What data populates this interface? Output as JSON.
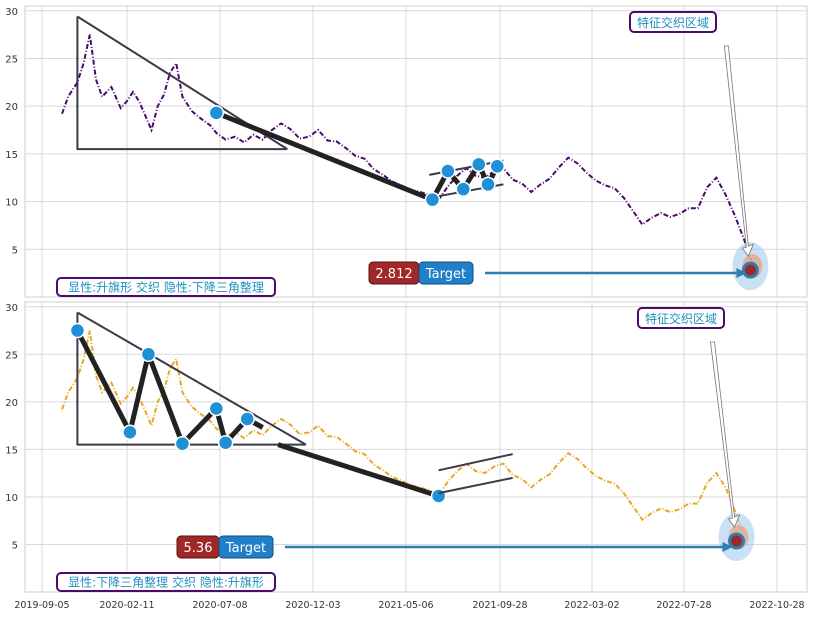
{
  "chart_data": [
    {
      "type": "line",
      "panel": "top",
      "ylim": [
        0,
        30.5
      ],
      "yticks": [
        5,
        10,
        15,
        20,
        25,
        30
      ],
      "series_color": "#4b0a6e",
      "series": [
        {
          "values": [
            [
              0,
              19.2
            ],
            [
              0.2,
              21
            ],
            [
              0.5,
              22.5
            ],
            [
              0.7,
              24.5
            ],
            [
              0.9,
              27.5
            ],
            [
              1.1,
              22.8
            ],
            [
              1.3,
              21
            ],
            [
              1.6,
              22
            ],
            [
              1.9,
              19.8
            ],
            [
              2.1,
              20.5
            ],
            [
              2.3,
              21.5
            ],
            [
              2.5,
              20.5
            ],
            [
              2.7,
              19
            ],
            [
              2.9,
              17.5
            ],
            [
              3.1,
              20
            ],
            [
              3.3,
              21.2
            ],
            [
              3.5,
              23.5
            ],
            [
              3.7,
              24.5
            ],
            [
              3.9,
              21
            ],
            [
              4.2,
              19.5
            ],
            [
              4.5,
              18.7
            ],
            [
              4.8,
              18
            ],
            [
              5.0,
              17.2
            ],
            [
              5.3,
              16.5
            ],
            [
              5.6,
              16.8
            ],
            [
              5.9,
              16.2
            ],
            [
              6.2,
              17
            ],
            [
              6.5,
              16.5
            ],
            [
              6.8,
              17.5
            ],
            [
              7.1,
              18.2
            ],
            [
              7.4,
              17.6
            ],
            [
              7.7,
              16.6
            ],
            [
              8.0,
              16.8
            ],
            [
              8.3,
              17.5
            ],
            [
              8.6,
              16.4
            ],
            [
              8.9,
              16.3
            ],
            [
              9.2,
              15.6
            ],
            [
              9.5,
              14.8
            ],
            [
              9.8,
              14.5
            ],
            [
              10.1,
              13.4
            ],
            [
              10.4,
              12.8
            ],
            [
              10.7,
              12.1
            ],
            [
              11.0,
              11.7
            ],
            [
              11.3,
              11.2
            ],
            [
              11.6,
              11.0
            ],
            [
              11.9,
              10.7
            ],
            [
              12.2,
              10.2
            ],
            [
              12.5,
              11.6
            ],
            [
              12.8,
              12.7
            ],
            [
              13.1,
              13.5
            ],
            [
              13.4,
              12.7
            ],
            [
              13.7,
              12.5
            ],
            [
              14.0,
              13.2
            ],
            [
              14.3,
              13.5
            ],
            [
              14.6,
              12.3
            ],
            [
              14.9,
              11.9
            ],
            [
              15.2,
              11.0
            ],
            [
              15.5,
              11.8
            ],
            [
              15.8,
              12.4
            ],
            [
              16.1,
              13.6
            ],
            [
              16.4,
              14.6
            ],
            [
              16.7,
              14.0
            ],
            [
              17.0,
              13.0
            ],
            [
              17.3,
              12.2
            ],
            [
              17.6,
              11.7
            ],
            [
              17.9,
              11.4
            ],
            [
              18.2,
              10.4
            ],
            [
              18.5,
              9.0
            ],
            [
              18.8,
              7.6
            ],
            [
              19.1,
              8.3
            ],
            [
              19.4,
              8.8
            ],
            [
              19.7,
              8.4
            ],
            [
              20.0,
              8.7
            ],
            [
              20.3,
              9.3
            ],
            [
              20.6,
              9.3
            ],
            [
              20.9,
              11.5
            ],
            [
              21.2,
              12.5
            ],
            [
              21.5,
              10.7
            ],
            [
              21.8,
              8.5
            ],
            [
              22.1,
              6.0
            ],
            [
              22.35,
              3.6
            ]
          ]
        }
      ],
      "patterns": [
        {
          "name": "descending-triangle",
          "lines": [
            [
              [
                0.5,
                29.4
              ],
              [
                0.5,
                15.5
              ],
              [
                7.3,
                15.5
              ]
            ],
            [
              [
                0.5,
                29.4
              ],
              [
                7.3,
                15.5
              ]
            ]
          ],
          "points": []
        },
        {
          "name": "trend",
          "lines": [
            [
              [
                5.0,
                19.3
              ],
              [
                12.0,
                10.2
              ]
            ]
          ],
          "points": [
            [
              5.0,
              19.3
            ]
          ]
        },
        {
          "name": "flag",
          "lines": [
            [
              [
                12.0,
                10.2
              ],
              [
                12.5,
                13.2
              ],
              [
                13.0,
                11.3
              ],
              [
                13.5,
                13.9
              ],
              [
                13.8,
                11.8
              ],
              [
                14.1,
                13.7
              ]
            ],
            [
              [
                11.9,
                12.8
              ],
              [
                14.3,
                14.3
              ]
            ],
            [
              [
                11.9,
                10.4
              ],
              [
                14.3,
                11.8
              ]
            ]
          ],
          "points": [
            [
              12.0,
              10.2
            ],
            [
              12.5,
              13.2
            ],
            [
              13.0,
              11.3
            ],
            [
              13.5,
              13.9
            ],
            [
              13.8,
              11.8
            ],
            [
              14.1,
              13.7
            ]
          ]
        }
      ],
      "target_label": "2.812",
      "target_text": "Target",
      "target_point": [
        22.3,
        2.812
      ],
      "zone_label": "特征交织区域",
      "footer_label": "显性:升旗形 交织 隐性:下降三角整理"
    },
    {
      "type": "line",
      "panel": "bottom",
      "ylim": [
        0,
        30.5
      ],
      "yticks": [
        5,
        10,
        15,
        20,
        25,
        30
      ],
      "series_color": "#e8a825",
      "series": [
        {
          "values": [
            [
              0,
              19.2
            ],
            [
              0.2,
              21
            ],
            [
              0.5,
              22.5
            ],
            [
              0.7,
              24.5
            ],
            [
              0.9,
              27.5
            ],
            [
              1.1,
              22.8
            ],
            [
              1.3,
              21
            ],
            [
              1.6,
              22
            ],
            [
              1.9,
              19.8
            ],
            [
              2.1,
              20.5
            ],
            [
              2.3,
              21.5
            ],
            [
              2.5,
              20.5
            ],
            [
              2.7,
              19
            ],
            [
              2.9,
              17.5
            ],
            [
              3.1,
              20
            ],
            [
              3.3,
              21.2
            ],
            [
              3.5,
              23.5
            ],
            [
              3.7,
              24.5
            ],
            [
              3.9,
              21
            ],
            [
              4.2,
              19.5
            ],
            [
              4.5,
              18.7
            ],
            [
              4.8,
              18
            ],
            [
              5.0,
              17.2
            ],
            [
              5.3,
              16.5
            ],
            [
              5.6,
              16.8
            ],
            [
              5.9,
              16.2
            ],
            [
              6.2,
              17
            ],
            [
              6.5,
              16.5
            ],
            [
              6.8,
              17.5
            ],
            [
              7.1,
              18.2
            ],
            [
              7.4,
              17.6
            ],
            [
              7.7,
              16.6
            ],
            [
              8.0,
              16.8
            ],
            [
              8.3,
              17.5
            ],
            [
              8.6,
              16.4
            ],
            [
              8.9,
              16.3
            ],
            [
              9.2,
              15.6
            ],
            [
              9.5,
              14.8
            ],
            [
              9.8,
              14.5
            ],
            [
              10.1,
              13.4
            ],
            [
              10.4,
              12.8
            ],
            [
              10.7,
              12.1
            ],
            [
              11.0,
              11.7
            ],
            [
              11.3,
              11.2
            ],
            [
              11.6,
              11.0
            ],
            [
              11.9,
              10.7
            ],
            [
              12.2,
              10.2
            ],
            [
              12.5,
              11.6
            ],
            [
              12.8,
              12.7
            ],
            [
              13.1,
              13.5
            ],
            [
              13.4,
              12.7
            ],
            [
              13.7,
              12.5
            ],
            [
              14.0,
              13.2
            ],
            [
              14.3,
              13.5
            ],
            [
              14.6,
              12.3
            ],
            [
              14.9,
              11.9
            ],
            [
              15.2,
              11.0
            ],
            [
              15.5,
              11.8
            ],
            [
              15.8,
              12.4
            ],
            [
              16.1,
              13.6
            ],
            [
              16.4,
              14.6
            ],
            [
              16.7,
              14.0
            ],
            [
              17.0,
              13.0
            ],
            [
              17.3,
              12.2
            ],
            [
              17.6,
              11.7
            ],
            [
              17.9,
              11.4
            ],
            [
              18.2,
              10.4
            ],
            [
              18.5,
              9.0
            ],
            [
              18.8,
              7.6
            ],
            [
              19.1,
              8.3
            ],
            [
              19.4,
              8.8
            ],
            [
              19.7,
              8.4
            ],
            [
              20.0,
              8.7
            ],
            [
              20.3,
              9.3
            ],
            [
              20.6,
              9.3
            ],
            [
              20.9,
              11.5
            ],
            [
              21.2,
              12.5
            ],
            [
              21.5,
              11.0
            ],
            [
              21.8,
              8.5
            ],
            [
              22.1,
              5.8
            ]
          ]
        }
      ],
      "patterns": [
        {
          "name": "descending-triangle",
          "lines": [
            [
              [
                0.5,
                29.4
              ],
              [
                0.5,
                15.5
              ],
              [
                7.9,
                15.5
              ]
            ],
            [
              [
                0.5,
                29.4
              ],
              [
                7.9,
                15.5
              ]
            ],
            [
              [
                0.5,
                27.5
              ],
              [
                2.2,
                16.8
              ],
              [
                2.8,
                25.0
              ],
              [
                3.9,
                15.6
              ],
              [
                5.0,
                19.3
              ],
              [
                5.3,
                15.7
              ],
              [
                6.0,
                18.2
              ],
              [
                6.5,
                17.3
              ]
            ],
            [
              [
                7.0,
                15.5
              ],
              [
                12.2,
                10.1
              ]
            ]
          ],
          "points": [
            [
              0.5,
              27.5
            ],
            [
              2.2,
              16.8
            ],
            [
              2.8,
              25.0
            ],
            [
              3.9,
              15.6
            ],
            [
              5.0,
              19.3
            ],
            [
              5.3,
              15.7
            ],
            [
              6.0,
              18.2
            ],
            [
              12.2,
              10.1
            ]
          ]
        },
        {
          "name": "flag",
          "lines": [
            [
              [
                12.2,
                12.8
              ],
              [
                14.6,
                14.5
              ]
            ],
            [
              [
                12.2,
                10.4
              ],
              [
                14.6,
                12.0
              ]
            ]
          ],
          "points": []
        }
      ],
      "target_label": "5.36",
      "target_text": "Target",
      "target_point": [
        21.85,
        5.36
      ],
      "zone_label": "特征交织区域",
      "footer_label": "显性:下降三角整理 交织 隐性:升旗形"
    }
  ],
  "x_ticks": [
    "2019-09-05",
    "2020-02-11",
    "2020-07-08",
    "2020-12-03",
    "2021-05-06",
    "2021-09-28",
    "2022-03-02",
    "2022-07-28",
    "2022-10-28"
  ],
  "colors": {
    "grid": "#d9d9d9",
    "frame": "#cfcfcf",
    "pattern": "#222222",
    "dot": "#1f8fd6",
    "arrow": "#2c7fb0",
    "badge_red": "#a02828",
    "badge_blue": "#1f7fc8",
    "label_border": "#4b0a6e",
    "label_text": "#1f8fc0"
  }
}
